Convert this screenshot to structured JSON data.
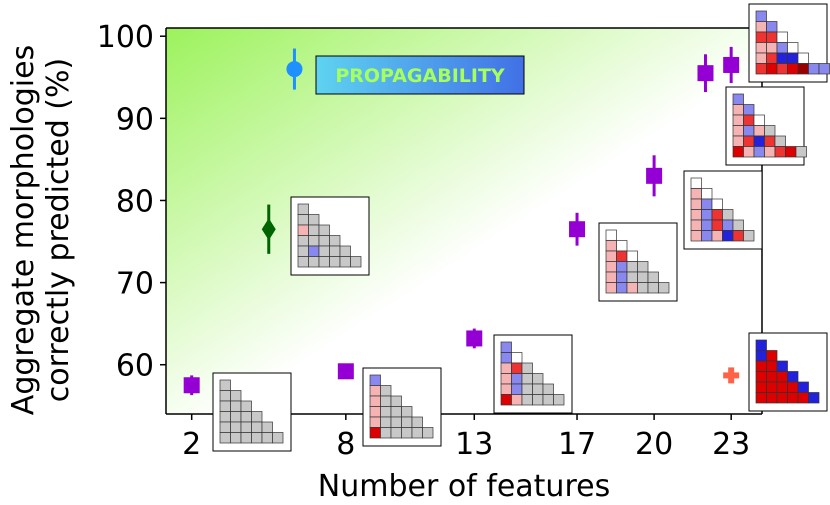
{
  "chart_data": {
    "type": "scatter",
    "xlabel": "Number of features",
    "ylabel": [
      "Aggregate morphologies",
      "correctly predicted (%)"
    ],
    "xticks": [
      2,
      8,
      13,
      17,
      20,
      23
    ],
    "yticks": [
      60,
      70,
      80,
      90,
      100
    ],
    "xlim": [
      1,
      24.2
    ],
    "ylim": [
      54,
      101
    ],
    "background_gradient": [
      "#9cf25c",
      "#ffffff"
    ],
    "banner": {
      "text": "PROPAGABILITY",
      "gradient": [
        "#5ed3f0",
        "#4170e6"
      ],
      "text_color": "#a6ff5c"
    },
    "series": [
      {
        "marker": "square",
        "color": "#9400d3",
        "points": [
          {
            "x": 2,
            "y": 57.5,
            "err": 1.2
          },
          {
            "x": 8,
            "y": 59.2,
            "err": 0.6
          },
          {
            "x": 13,
            "y": 63.2,
            "err": 1.2
          },
          {
            "x": 17,
            "y": 76.5,
            "err": 2.0
          },
          {
            "x": 20,
            "y": 83.0,
            "err": 2.5
          },
          {
            "x": 22,
            "y": 95.5,
            "err": 2.3
          },
          {
            "x": 23,
            "y": 96.5,
            "err": 2.2
          }
        ]
      },
      {
        "marker": "circle",
        "color": "#1e90ff",
        "points": [
          {
            "x": 6,
            "y": 96.0,
            "err": 2.5
          }
        ]
      },
      {
        "marker": "diamond",
        "color": "#006400",
        "points": [
          {
            "x": 5,
            "y": 76.5,
            "err": 3.0
          }
        ]
      },
      {
        "marker": "plus",
        "color": "#ff6347",
        "points": [
          {
            "x": 23,
            "y": 58.7,
            "err": 0
          }
        ]
      }
    ],
    "insets": [
      {
        "id": "inset-2",
        "rows": [
          "g",
          "gg",
          "ggg",
          "gggg",
          "ggggg",
          "gggggg"
        ]
      },
      {
        "id": "inset-prop",
        "rows": [
          "g",
          "gg",
          "pgg",
          "gggg",
          "gbggg",
          "gggggg"
        ]
      },
      {
        "id": "inset-8",
        "rows": [
          "b",
          "pg",
          "pgg",
          "pggg",
          "pgggg",
          "Rggggg"
        ]
      },
      {
        "id": "inset-13",
        "rows": [
          "b",
          "bw",
          "prg",
          "pbgg",
          "pbggg",
          "Rpgggg"
        ]
      },
      {
        "id": "inset-17",
        "rows": [
          "w",
          "pw",
          "prw",
          "pbgg",
          "pbggg",
          "pbpggg"
        ]
      },
      {
        "id": "inset-20",
        "rows": [
          "w",
          "pw",
          "pbw",
          "pbrg",
          "pbrbg",
          "pbpBrg"
        ]
      },
      {
        "id": "inset-22",
        "rows": [
          "b",
          "pb",
          "prw",
          "pbpg",
          "prBrg",
          "RpbprRg"
        ]
      },
      {
        "id": "inset-23",
        "rows": [
          "b",
          "pb",
          "rrw",
          "ppbw",
          "prBBw",
          "rRrRDbb"
        ]
      },
      {
        "id": "inset-corner",
        "rows": [
          "B",
          "BR",
          "RRB",
          "RRRB",
          "RRRRB",
          "RRRRRB"
        ]
      }
    ],
    "cell_colors": {
      "g": "#c8c8c8",
      "w": "#ffffff",
      "p": "#f5b3b3",
      "r": "#ee3333",
      "R": "#dd0000",
      "D": "#990000",
      "b": "#8888ee",
      "B": "#2222dd"
    }
  }
}
